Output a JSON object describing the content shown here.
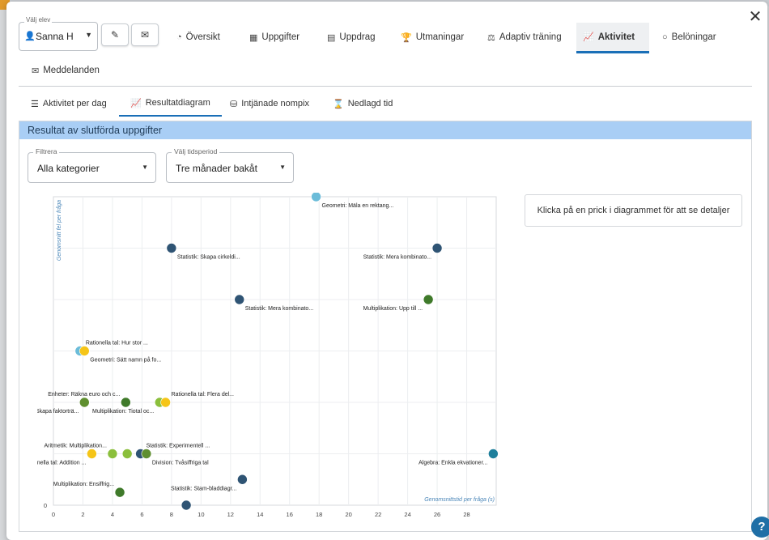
{
  "student": {
    "label": "Välj elev",
    "value": "Sanna H"
  },
  "main_tabs": [
    {
      "label": "Översikt",
      "icon": "dashboard-icon"
    },
    {
      "label": "Uppgifter",
      "icon": "grid-icon"
    },
    {
      "label": "Uppdrag",
      "icon": "document-icon"
    },
    {
      "label": "Utmaningar",
      "icon": "trophy-icon"
    },
    {
      "label": "Adaptiv träning",
      "icon": "dumbbell-icon"
    },
    {
      "label": "Aktivitet",
      "icon": "chart-icon"
    },
    {
      "label": "Belöningar",
      "icon": "circle-icon"
    },
    {
      "label": "Meddelanden",
      "icon": "mail-icon"
    }
  ],
  "sub_tabs": [
    {
      "label": "Aktivitet per dag",
      "icon": "list-icon"
    },
    {
      "label": "Resultatdiagram",
      "icon": "chart-icon"
    },
    {
      "label": "Intjänade nompix",
      "icon": "coins-icon"
    },
    {
      "label": "Nedlagd tid",
      "icon": "hourglass-icon"
    }
  ],
  "panel": {
    "title": "Resultat av slutförda uppgifter"
  },
  "filter": {
    "label": "Filtrera",
    "value": "Alla kategorier"
  },
  "period": {
    "label": "Välj tidsperiod",
    "value": "Tre månader bakåt"
  },
  "details_hint": "Klicka på en prick i diagrammet för att se detaljer",
  "colors": {
    "accent": "#1a6fb7",
    "header": "#a9cef5"
  },
  "chart_data": {
    "type": "scatter",
    "xlabel": "Genomsnittstid per fråga (s)",
    "ylabel": "Genomsnitt fel per fråga",
    "xlim": [
      0,
      30
    ],
    "ylim": [
      0,
      6
    ],
    "x_ticks": [
      0,
      2,
      4,
      6,
      8,
      10,
      12,
      14,
      16,
      18,
      20,
      22,
      24,
      26,
      28
    ],
    "y_ticks": [
      0
    ],
    "grid": true,
    "points": [
      {
        "x": 17.8,
        "y": 6.0,
        "color": "#6bbcd9",
        "label": "Geometri: Mäla en rektang...",
        "lpos": "below-right"
      },
      {
        "x": 8.0,
        "y": 5.0,
        "color": "#2f5474",
        "label": "Statistik: Skapa cirkeldi...",
        "lpos": "below-right"
      },
      {
        "x": 26.0,
        "y": 5.0,
        "color": "#2f5474",
        "label": "Statistik: Mera kombinato...",
        "lpos": "below-left"
      },
      {
        "x": 12.6,
        "y": 4.0,
        "color": "#2f5474",
        "label": "Statistik: Mera kombinato...",
        "lpos": "below-right"
      },
      {
        "x": 25.4,
        "y": 4.0,
        "color": "#3f7a2a",
        "label": "Multiplikation: Upp till ...",
        "lpos": "below-left"
      },
      {
        "x": 1.8,
        "y": 3.0,
        "color": "#6bbcd9",
        "label": "Rationella tal: Hur stor ...",
        "lpos": "above-right"
      },
      {
        "x": 2.1,
        "y": 3.0,
        "color": "#f5c518",
        "label": "Geometri: Sätt namn på fo...",
        "lpos": "below-right"
      },
      {
        "x": 2.1,
        "y": 2.0,
        "color": "#5f8f2f",
        "label": "Division: Skapa faktorträ...",
        "lpos": "below-left"
      },
      {
        "x": 4.9,
        "y": 2.0,
        "color": "#3f7a2a",
        "label": "Enheter: Räkna euro och c...",
        "lpos": "above-left"
      },
      {
        "x": 7.2,
        "y": 2.0,
        "color": "#8bbf3c",
        "label": "Multiplikation: Tiotal oc...",
        "lpos": "below-left"
      },
      {
        "x": 7.6,
        "y": 2.0,
        "color": "#f5c518",
        "label": "Rationella tal: Flera del...",
        "lpos": "above-right"
      },
      {
        "x": 2.6,
        "y": 1.0,
        "color": "#f5c518",
        "label": "Rationella tal: Addition ...",
        "lpos": "below-left"
      },
      {
        "x": 4.0,
        "y": 1.0,
        "color": "#8bbf3c",
        "label": "Aritmetik: Multiplikation...",
        "lpos": "above-left"
      },
      {
        "x": 5.0,
        "y": 1.0,
        "color": "#8bbf3c",
        "label": "",
        "lpos": "none"
      },
      {
        "x": 5.9,
        "y": 1.0,
        "color": "#2f5474",
        "label": "Statistik: Experimentell ...",
        "lpos": "above-right"
      },
      {
        "x": 6.3,
        "y": 1.0,
        "color": "#5f8f2f",
        "label": "Division: Tvåsiffriga tal",
        "lpos": "below-right"
      },
      {
        "x": 29.8,
        "y": 1.0,
        "color": "#1e7f9c",
        "label": "Algebra: Enkla ekvationer...",
        "lpos": "below-left"
      },
      {
        "x": 12.8,
        "y": 0.5,
        "color": "#2f5474",
        "label": "Statistik: Stam-bladdiagr...",
        "lpos": "below-left"
      },
      {
        "x": 4.5,
        "y": 0.25,
        "color": "#3f7a2a",
        "label": "Multiplikation: Ensiffrig...",
        "lpos": "above-left"
      },
      {
        "x": 9.0,
        "y": 0.0,
        "color": "#2f5474",
        "label": "",
        "lpos": "none"
      }
    ]
  }
}
